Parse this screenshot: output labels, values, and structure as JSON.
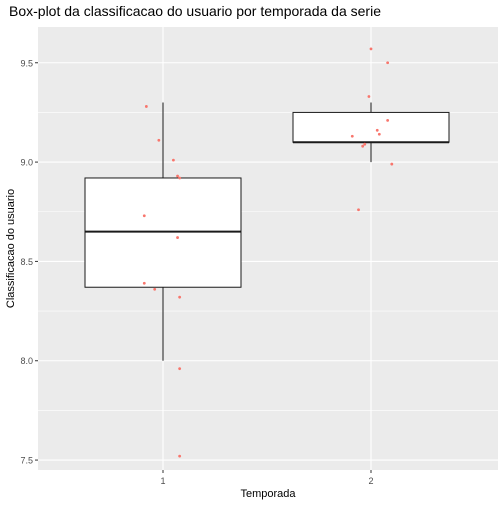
{
  "chart_data": {
    "type": "box",
    "title": "Box-plot da classificacao do usuario por temporada da serie",
    "xlabel": "Temporada",
    "ylabel": "Classificacao do usuario",
    "categories": [
      "1",
      "2"
    ],
    "ylim": [
      7.45,
      9.68
    ],
    "yticks": [
      7.5,
      8.0,
      8.5,
      9.0,
      9.5
    ],
    "ytick_labels": [
      "7.5",
      "8.0",
      "8.5",
      "9.0",
      "9.5"
    ],
    "grid": true,
    "boxes": [
      {
        "category": "1",
        "whisker_low": 8.0,
        "q1": 8.37,
        "median": 8.65,
        "q3": 8.92,
        "whisker_high": 9.3
      },
      {
        "category": "2",
        "whisker_low": 9.0,
        "q1": 9.1,
        "median": 9.1,
        "q3": 9.25,
        "whisker_high": 9.3
      }
    ],
    "points": [
      {
        "category": "1",
        "jitter": -0.08,
        "y": 9.28
      },
      {
        "category": "1",
        "jitter": -0.02,
        "y": 9.11
      },
      {
        "category": "1",
        "jitter": 0.05,
        "y": 9.01
      },
      {
        "category": "1",
        "jitter": 0.07,
        "y": 8.93
      },
      {
        "category": "1",
        "jitter": 0.08,
        "y": 8.92
      },
      {
        "category": "1",
        "jitter": -0.09,
        "y": 8.73
      },
      {
        "category": "1",
        "jitter": 0.07,
        "y": 8.62
      },
      {
        "category": "1",
        "jitter": -0.09,
        "y": 8.39
      },
      {
        "category": "1",
        "jitter": -0.04,
        "y": 8.36
      },
      {
        "category": "1",
        "jitter": 0.08,
        "y": 8.32
      },
      {
        "category": "1",
        "jitter": 0.08,
        "y": 7.96
      },
      {
        "category": "1",
        "jitter": 0.08,
        "y": 7.52
      },
      {
        "category": "2",
        "jitter": 0.0,
        "y": 9.57
      },
      {
        "category": "2",
        "jitter": 0.08,
        "y": 9.5
      },
      {
        "category": "2",
        "jitter": -0.01,
        "y": 9.33
      },
      {
        "category": "2",
        "jitter": 0.08,
        "y": 9.21
      },
      {
        "category": "2",
        "jitter": 0.03,
        "y": 9.16
      },
      {
        "category": "2",
        "jitter": 0.04,
        "y": 9.14
      },
      {
        "category": "2",
        "jitter": -0.09,
        "y": 9.13
      },
      {
        "category": "2",
        "jitter": -0.03,
        "y": 9.09
      },
      {
        "category": "2",
        "jitter": -0.04,
        "y": 9.08
      },
      {
        "category": "2",
        "jitter": 0.1,
        "y": 8.99
      },
      {
        "category": "2",
        "jitter": -0.06,
        "y": 8.76
      }
    ],
    "colors": {
      "panel": "#ebebeb",
      "grid_major": "#ffffff",
      "box_fill": "#ffffff",
      "box_line": "#1a1a1a",
      "points": "#f8766d",
      "tick_text": "#4d4d4d",
      "axis_title": "#000000"
    }
  }
}
